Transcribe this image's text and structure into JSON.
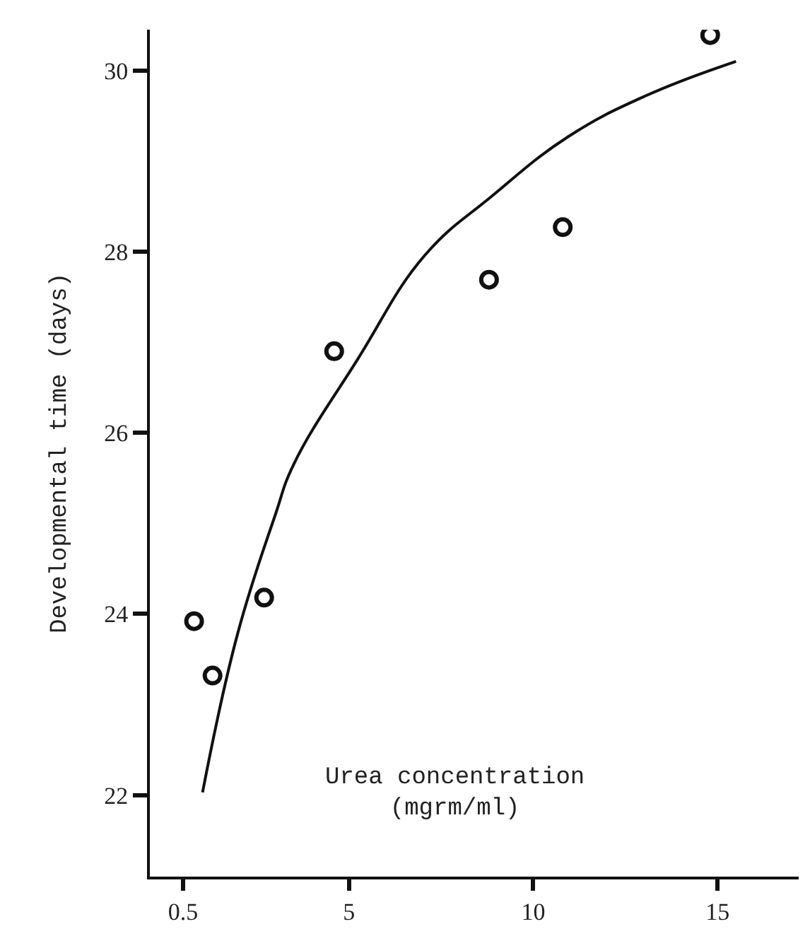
{
  "chart_data": {
    "type": "scatter",
    "xlabel": "Urea concentration\n(mgrm/ml)",
    "ylabel": "Developmental time (days)",
    "xlim": [
      -0.4,
      17.2
    ],
    "ylim": [
      21.1,
      30.45
    ],
    "xticks": [
      0.5,
      5,
      10,
      15
    ],
    "yticks": [
      22,
      24,
      26,
      28,
      30
    ],
    "series": [
      {
        "marker": "circle",
        "color": "#111111",
        "x": [
          0.8,
          1.3,
          2.7,
          4.6,
          8.8,
          10.8,
          14.8
        ],
        "values": [
          23.92,
          23.32,
          24.18,
          26.9,
          27.69,
          28.27,
          30.39
        ]
      },
      {
        "type": "line",
        "marker": "none",
        "line_style": "solid",
        "color": "#111111",
        "x": [
          1.03,
          1.98,
          3.0,
          3.5,
          5.25,
          7.06,
          8.87,
          10.95,
          13.05,
          15.5
        ],
        "values": [
          22.03,
          23.78,
          25.09,
          25.65,
          26.82,
          27.96,
          28.61,
          29.27,
          29.72,
          30.1
        ]
      }
    ]
  }
}
